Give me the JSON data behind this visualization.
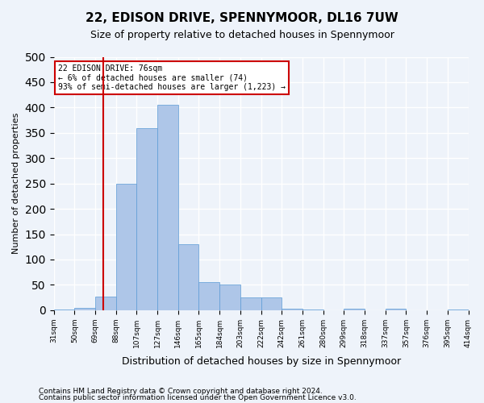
{
  "title1": "22, EDISON DRIVE, SPENNYMOOR, DL16 7UW",
  "title2": "Size of property relative to detached houses in Spennymoor",
  "xlabel": "Distribution of detached houses by size in Spennymoor",
  "ylabel": "Number of detached properties",
  "footer1": "Contains HM Land Registry data © Crown copyright and database right 2024.",
  "footer2": "Contains public sector information licensed under the Open Government Licence v3.0.",
  "annotation_line1": "22 EDISON DRIVE: 76sqm",
  "annotation_line2": "← 6% of detached houses are smaller (74)",
  "annotation_line3": "93% of semi-detached houses are larger (1,223) →",
  "property_size": 76,
  "bar_color": "#aec6e8",
  "bar_edge_color": "#5b9bd5",
  "redline_color": "#cc0000",
  "annotation_box_edgecolor": "#cc0000",
  "annotation_box_facecolor": "#ffffff",
  "bins": [
    31,
    50,
    69,
    88,
    107,
    127,
    146,
    165,
    184,
    203,
    222,
    242,
    261,
    280,
    299,
    318,
    337,
    357,
    376,
    395,
    414
  ],
  "bin_labels": [
    "31sqm",
    "50sqm",
    "69sqm",
    "88sqm",
    "107sqm",
    "127sqm",
    "146sqm",
    "165sqm",
    "184sqm",
    "203sqm",
    "222sqm",
    "242sqm",
    "261sqm",
    "280sqm",
    "299sqm",
    "318sqm",
    "337sqm",
    "357sqm",
    "376sqm",
    "395sqm",
    "414sqm"
  ],
  "counts": [
    2,
    5,
    26,
    250,
    360,
    405,
    130,
    55,
    50,
    25,
    25,
    3,
    2,
    0,
    3,
    0,
    3,
    0,
    0,
    2
  ],
  "ylim": [
    0,
    500
  ],
  "yticks": [
    0,
    50,
    100,
    150,
    200,
    250,
    300,
    350,
    400,
    450,
    500
  ],
  "background_color": "#eef3fa",
  "plot_bg_color": "#eef3fa",
  "grid_color": "#ffffff",
  "figsize": [
    6.0,
    5.0
  ],
  "dpi": 100
}
